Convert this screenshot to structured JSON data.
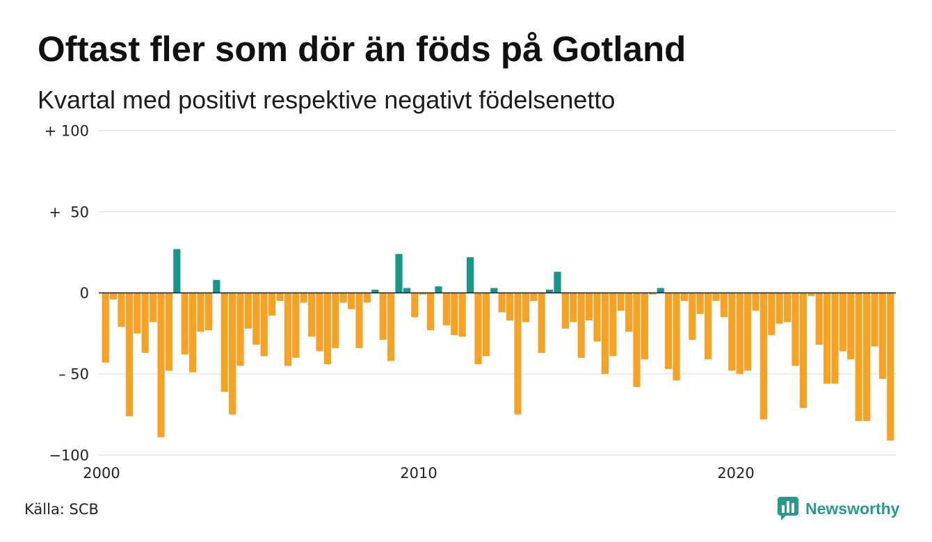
{
  "source": "Källa: SCB",
  "brand": {
    "name": "Newsworthy",
    "icon": "newsworthy-logo-icon",
    "color": "#269A8B"
  },
  "chart_data": {
    "type": "bar",
    "title": "Oftast fler som dör än föds på Gotland",
    "subtitle": "Kvartal med positivt respektive negativt födelsenetto",
    "ylim": [
      -100,
      100
    ],
    "xlim": [
      2000,
      2025
    ],
    "grid": true,
    "legend": "none",
    "colors": {
      "positive": "#17978A",
      "negative": "#F6A325",
      "zero_line": "#1a1a1a",
      "grid": "#dddddd"
    },
    "y_ticks": [
      {
        "value": 100,
        "label": "+ 100"
      },
      {
        "value": 50,
        "label": "+  50"
      },
      {
        "value": 0,
        "label": "0"
      },
      {
        "value": -50,
        "label": "– 50"
      },
      {
        "value": -100,
        "label": "−100"
      }
    ],
    "x_ticks": [
      {
        "value": 2000,
        "label": "2000"
      },
      {
        "value": 2010,
        "label": "2010"
      },
      {
        "value": 2020,
        "label": "2020"
      }
    ],
    "x": [
      "2000-Q1",
      "2000-Q2",
      "2000-Q3",
      "2000-Q4",
      "2001-Q1",
      "2001-Q2",
      "2001-Q3",
      "2001-Q4",
      "2002-Q1",
      "2002-Q2",
      "2002-Q3",
      "2002-Q4",
      "2003-Q1",
      "2003-Q2",
      "2003-Q3",
      "2003-Q4",
      "2004-Q1",
      "2004-Q2",
      "2004-Q3",
      "2004-Q4",
      "2005-Q1",
      "2005-Q2",
      "2005-Q3",
      "2005-Q4",
      "2006-Q1",
      "2006-Q2",
      "2006-Q3",
      "2006-Q4",
      "2007-Q1",
      "2007-Q2",
      "2007-Q3",
      "2007-Q4",
      "2008-Q1",
      "2008-Q2",
      "2008-Q3",
      "2008-Q4",
      "2009-Q1",
      "2009-Q2",
      "2009-Q3",
      "2009-Q4",
      "2010-Q1",
      "2010-Q2",
      "2010-Q3",
      "2010-Q4",
      "2011-Q1",
      "2011-Q2",
      "2011-Q3",
      "2011-Q4",
      "2012-Q1",
      "2012-Q2",
      "2012-Q3",
      "2012-Q4",
      "2013-Q1",
      "2013-Q2",
      "2013-Q3",
      "2013-Q4",
      "2014-Q1",
      "2014-Q2",
      "2014-Q3",
      "2014-Q4",
      "2015-Q1",
      "2015-Q2",
      "2015-Q3",
      "2015-Q4",
      "2016-Q1",
      "2016-Q2",
      "2016-Q3",
      "2016-Q4",
      "2017-Q1",
      "2017-Q2",
      "2017-Q3",
      "2017-Q4",
      "2018-Q1",
      "2018-Q2",
      "2018-Q3",
      "2018-Q4",
      "2019-Q1",
      "2019-Q2",
      "2019-Q3",
      "2019-Q4",
      "2020-Q1",
      "2020-Q2",
      "2020-Q3",
      "2020-Q4",
      "2021-Q1",
      "2021-Q2",
      "2021-Q3",
      "2021-Q4",
      "2022-Q1",
      "2022-Q2",
      "2022-Q3",
      "2022-Q4",
      "2023-Q1",
      "2023-Q2",
      "2023-Q3",
      "2023-Q4",
      "2024-Q1",
      "2024-Q2",
      "2024-Q3",
      "2024-Q4"
    ],
    "values": [
      -43,
      -4,
      -21,
      -76,
      -25,
      -37,
      -18,
      -89,
      -48,
      27,
      -38,
      -49,
      -24,
      -23,
      8,
      -61,
      -75,
      -45,
      -22,
      -32,
      -39,
      -14,
      -5,
      -45,
      -40,
      -6,
      -27,
      -36,
      -44,
      -34,
      -6,
      -10,
      -34,
      -6,
      2,
      -29,
      -42,
      24,
      3,
      -15,
      -1,
      -23,
      4,
      -20,
      -26,
      -27,
      22,
      -44,
      -39,
      3,
      -12,
      -17,
      -75,
      -18,
      -5,
      -37,
      2,
      13,
      -22,
      -18,
      -40,
      -17,
      -30,
      -50,
      -39,
      -11,
      -24,
      -58,
      -41,
      -1,
      3,
      -47,
      -54,
      -5,
      -29,
      -13,
      -41,
      -5,
      -15,
      -48,
      -50,
      -48,
      -11,
      -78,
      -26,
      -19,
      -18,
      -45,
      -71,
      -2,
      -32,
      -56,
      -56,
      -36,
      -41,
      -79,
      -79,
      -33,
      -53,
      -91
    ]
  }
}
